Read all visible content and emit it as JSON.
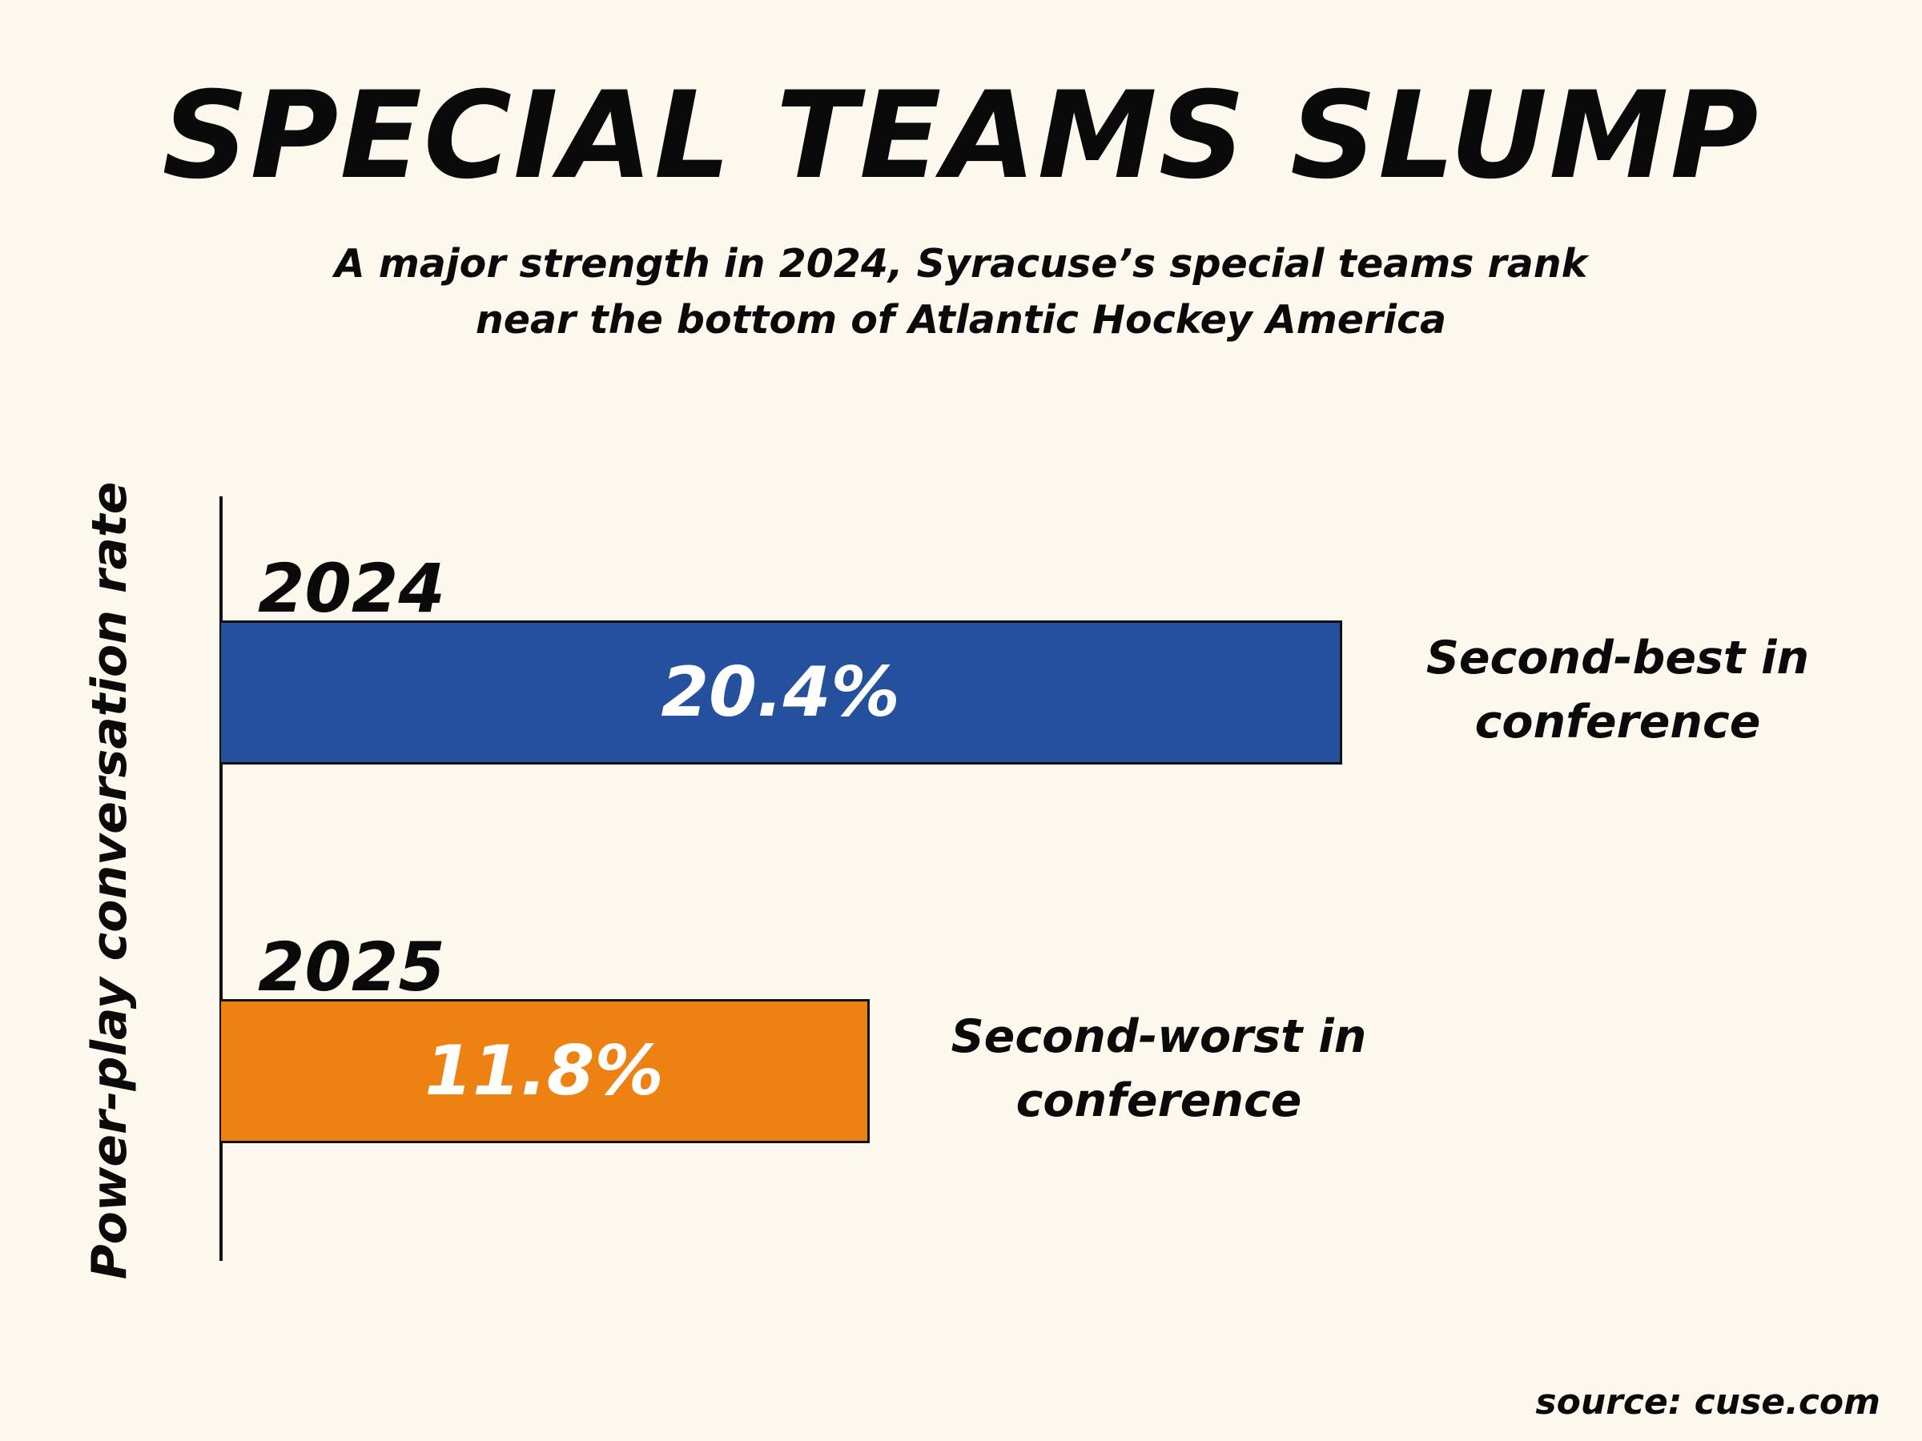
{
  "title": "SPECIAL TEAMS SLUMP",
  "subtitle": {
    "line1": "A major strength in 2024, Syracuse’s special teams rank",
    "line2": "near the bottom of Atlantic Hockey America"
  },
  "source": "source: cuse.com",
  "colors": {
    "background": "#fcf8ed",
    "bar_2024": "#24509d",
    "bar_2025": "#ed8213",
    "text": "#0a0a0a"
  },
  "chart_data": {
    "type": "bar",
    "orientation": "horizontal",
    "title": "SPECIAL TEAMS SLUMP",
    "ylabel": "Power-play conversation rate",
    "xlabel": "",
    "xlim": [
      0,
      20.4
    ],
    "grid": false,
    "categories": [
      "2024",
      "2025"
    ],
    "values": [
      20.4,
      11.8
    ],
    "value_labels": [
      "20.4%",
      "11.8%"
    ],
    "annotations": [
      {
        "line1": "Second-best in",
        "line2": "conference"
      },
      {
        "line1": "Second-worst in",
        "line2": "conference"
      }
    ],
    "colors": [
      "#24509d",
      "#ed8213"
    ]
  }
}
